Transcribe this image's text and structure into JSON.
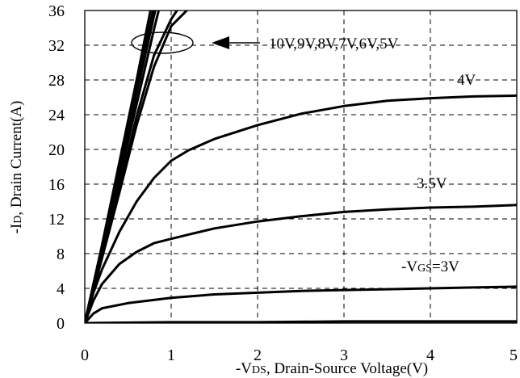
{
  "chart_data": {
    "type": "line",
    "xlabel_prefix": "-V",
    "xlabel_sub": "DS",
    "xlabel_rest": ", Drain-Source Voltage(V)",
    "ylabel_prefix": "-I",
    "ylabel_sub": "D",
    "ylabel_rest": ", Drain Current(A)",
    "xlim": [
      0,
      5
    ],
    "ylim": [
      0,
      36
    ],
    "x_ticks": [
      "0",
      "1",
      "2",
      "3",
      "4",
      "5"
    ],
    "y_ticks": [
      "0",
      "4",
      "8",
      "12",
      "16",
      "20",
      "24",
      "28",
      "32",
      "36"
    ],
    "grid": true,
    "series": [
      {
        "name": "10V",
        "x": [
          0,
          0.2,
          0.4,
          0.6,
          0.78
        ],
        "y": [
          0,
          9,
          18.5,
          28,
          37
        ]
      },
      {
        "name": "9V",
        "x": [
          0,
          0.2,
          0.4,
          0.6,
          0.8
        ],
        "y": [
          0,
          8.8,
          18,
          27,
          36.5
        ]
      },
      {
        "name": "8V",
        "x": [
          0,
          0.2,
          0.4,
          0.6,
          0.82
        ],
        "y": [
          0,
          8.6,
          17.4,
          26.4,
          36.2
        ]
      },
      {
        "name": "7V",
        "x": [
          0,
          0.2,
          0.4,
          0.6,
          0.8,
          0.88
        ],
        "y": [
          0,
          8.2,
          16.6,
          25.2,
          33.8,
          37
        ]
      },
      {
        "name": "6V",
        "x": [
          0,
          0.2,
          0.4,
          0.6,
          0.8,
          1.0,
          1.1
        ],
        "y": [
          0,
          7.6,
          15.6,
          23.8,
          30.8,
          35,
          36.5
        ]
      },
      {
        "name": "5V",
        "x": [
          0,
          0.2,
          0.4,
          0.6,
          0.8,
          1.0,
          1.2
        ],
        "y": [
          0,
          7.5,
          15,
          22.8,
          29.5,
          34.2,
          36.2
        ]
      },
      {
        "name": "4V",
        "x": [
          0,
          0.1,
          0.2,
          0.4,
          0.6,
          0.8,
          1.0,
          1.2,
          1.5,
          2.0,
          2.5,
          3.0,
          3.5,
          4.0,
          4.5,
          5.0
        ],
        "y": [
          0,
          3.5,
          6.2,
          10.5,
          14,
          16.7,
          18.7,
          19.9,
          21.2,
          22.8,
          24.1,
          25,
          25.6,
          25.9,
          26.1,
          26.2
        ]
      },
      {
        "name": "3.5V",
        "x": [
          0,
          0.1,
          0.2,
          0.4,
          0.6,
          0.8,
          1.0,
          1.2,
          1.5,
          2.0,
          2.5,
          3.0,
          3.5,
          4.0,
          4.5,
          5.0
        ],
        "y": [
          0,
          2.6,
          4.5,
          6.8,
          8.2,
          9.2,
          9.7,
          10.2,
          10.9,
          11.7,
          12.3,
          12.8,
          13.1,
          13.3,
          13.4,
          13.6
        ]
      },
      {
        "name": "3V",
        "x": [
          0,
          0.1,
          0.2,
          0.5,
          1.0,
          1.5,
          2.0,
          2.5,
          3.0,
          3.5,
          4.0,
          4.5,
          5.0
        ],
        "y": [
          0,
          1.1,
          1.7,
          2.3,
          2.9,
          3.3,
          3.5,
          3.7,
          3.8,
          3.9,
          4.0,
          4.1,
          4.2
        ]
      },
      {
        "name": "",
        "x": [
          0,
          1.0,
          2.0,
          3.0,
          4.0,
          5.0
        ],
        "y": [
          0,
          0.1,
          0.1,
          0.2,
          0.2,
          0.2
        ]
      }
    ],
    "annotations": {
      "group_label": "10V,9V,8V,7V,6V,5V",
      "label_4v": "4V",
      "label_35v": "3.5V",
      "label_3v_prefix": "-V",
      "label_3v_sub": "GS",
      "label_3v_rest": "=3V"
    }
  }
}
